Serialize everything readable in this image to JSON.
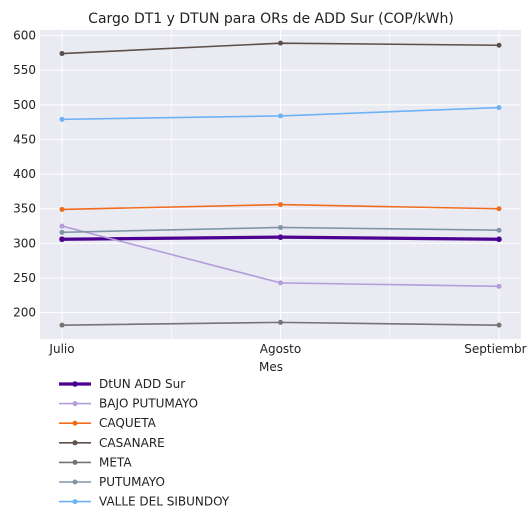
{
  "chart_data": {
    "type": "line",
    "title": "Cargo DT1 y DTUN para ORs de ADD Sur (COP/kWh)",
    "xlabel": "Mes",
    "ylabel": "",
    "categories": [
      "Julio",
      "Agosto",
      "Septiembre"
    ],
    "ylim": [
      162,
      608
    ],
    "yticks": [
      200,
      250,
      300,
      350,
      400,
      450,
      500,
      550,
      600
    ],
    "grid": true,
    "legend_position": "bottom-left",
    "series": [
      {
        "name": "DtUN ADD Sur",
        "color": "#4b0092",
        "width": 3.2,
        "values": [
          306,
          309,
          306
        ]
      },
      {
        "name": "BAJO PUTUMAYO",
        "color": "#b39ddb",
        "width": 1.6,
        "values": [
          325,
          243,
          238
        ]
      },
      {
        "name": "CAQUETA",
        "color": "#f06d1f",
        "width": 1.6,
        "values": [
          349,
          356,
          350
        ]
      },
      {
        "name": "CASANARE",
        "color": "#5d4f4a",
        "width": 1.6,
        "values": [
          574,
          589,
          586
        ]
      },
      {
        "name": "META",
        "color": "#747474",
        "width": 1.6,
        "values": [
          182,
          186,
          182
        ]
      },
      {
        "name": "PUTUMAYO",
        "color": "#8096a8",
        "width": 1.6,
        "values": [
          316,
          323,
          319
        ]
      },
      {
        "name": "VALLE DEL SIBUNDOY",
        "color": "#6eb2f5",
        "width": 1.6,
        "values": [
          479,
          484,
          496
        ]
      }
    ]
  }
}
